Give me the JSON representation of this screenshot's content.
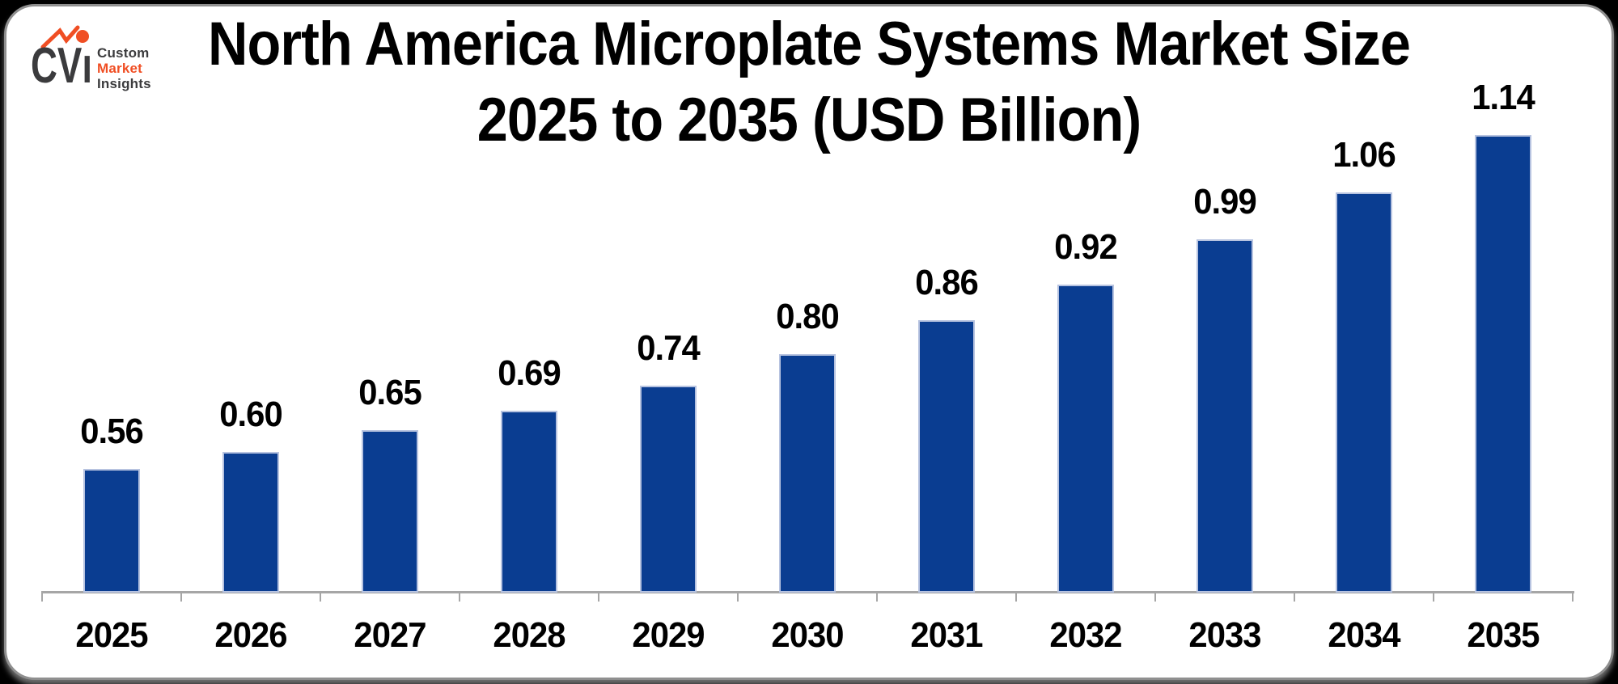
{
  "logo": {
    "mark": "CVı",
    "lines": [
      {
        "text": "Custom",
        "color": "#3b3b3d"
      },
      {
        "text": "Market",
        "color": "#f04e23"
      },
      {
        "text": "Insights",
        "color": "#3b3b3d"
      }
    ],
    "accent_color": "#f04e23",
    "dark_color": "#3b3b3d"
  },
  "title": {
    "line1": "North America Microplate Systems Market Size",
    "line2": "2025 to 2035 (USD Billion)"
  },
  "chart_data": {
    "type": "bar",
    "title": "North America Microplate Systems Market Size 2025 to 2035 (USD Billion)",
    "unit": "USD Billion",
    "categories": [
      "2025",
      "2026",
      "2027",
      "2028",
      "2029",
      "2030",
      "2031",
      "2032",
      "2033",
      "2034",
      "2035"
    ],
    "values": [
      0.56,
      0.6,
      0.65,
      0.69,
      0.74,
      0.8,
      0.86,
      0.92,
      0.99,
      1.06,
      1.14
    ],
    "value_labels": [
      "0.56",
      "0.60",
      "0.65",
      "0.69",
      "0.74",
      "0.80",
      "0.86",
      "0.92",
      "0.99",
      "1.06",
      "1.14"
    ],
    "xlabel": "",
    "ylabel": "",
    "legend": "none",
    "grid": false,
    "value_axis_visible": false,
    "value_labels_position": "above-bars",
    "bar_color": "#0a3d91",
    "bar_border_color": "#b7c3e0",
    "axis_line_color": "#a6a6a6",
    "label_color": "#000000"
  }
}
